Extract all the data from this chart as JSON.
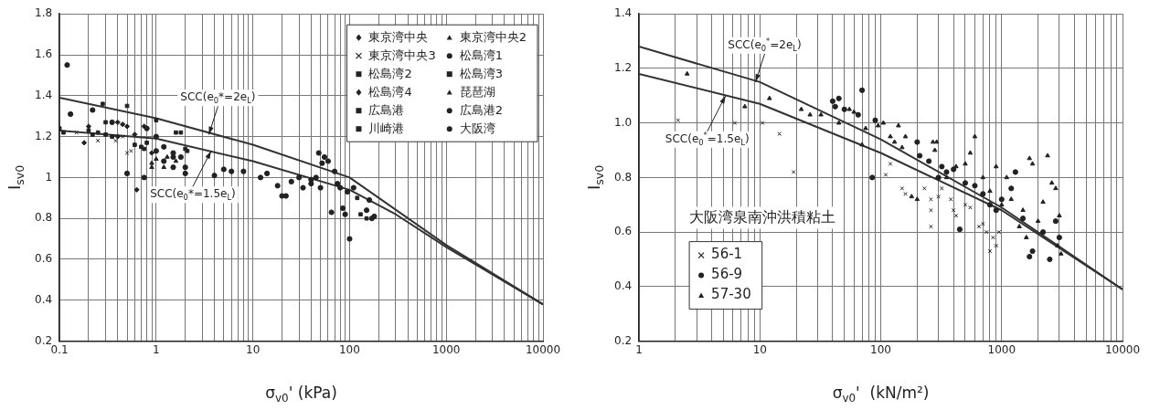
{
  "chart_data": [
    {
      "type": "scatter",
      "xlabel": "σ$_{v0}$' (kPa)",
      "ylabel": "I$_{sv0}$",
      "log": "x",
      "grid": true,
      "legend": "top right",
      "xlim": [
        0.1,
        10000
      ],
      "ylim": [
        0.2,
        1.8
      ],
      "xticks": [
        0.1,
        {
          "value": 0.2,
          "label": null
        },
        {
          "value": 0.3,
          "label": null
        },
        {
          "value": 0.4,
          "label": null
        },
        {
          "value": 0.5,
          "label": null
        },
        {
          "value": 0.6,
          "label": null
        },
        {
          "value": 0.7,
          "label": null
        },
        {
          "value": 0.8,
          "label": null
        },
        {
          "value": 0.9,
          "label": null
        },
        1,
        {
          "value": 2,
          "label": null
        },
        {
          "value": 3,
          "label": null
        },
        {
          "value": 4,
          "label": null
        },
        {
          "value": 5,
          "label": null
        },
        {
          "value": 6,
          "label": null
        },
        {
          "value": 7,
          "label": null
        },
        {
          "value": 8,
          "label": null
        },
        {
          "value": 9,
          "label": null
        },
        10,
        {
          "value": 20,
          "label": null
        },
        {
          "value": 30,
          "label": null
        },
        {
          "value": 40,
          "label": null
        },
        {
          "value": 50,
          "label": null
        },
        {
          "value": 60,
          "label": null
        },
        {
          "value": 70,
          "label": null
        },
        {
          "value": 80,
          "label": null
        },
        {
          "value": 90,
          "label": null
        },
        100,
        {
          "value": 200,
          "label": null
        },
        {
          "value": 300,
          "label": null
        },
        {
          "value": 400,
          "label": null
        },
        {
          "value": 500,
          "label": null
        },
        {
          "value": 600,
          "label": null
        },
        {
          "value": 700,
          "label": null
        },
        {
          "value": 800,
          "label": null
        },
        {
          "value": 900,
          "label": null
        },
        1000,
        {
          "value": 2000,
          "label": null
        },
        {
          "value": 3000,
          "label": null
        },
        {
          "value": 4000,
          "label": null
        },
        {
          "value": 5000,
          "label": null
        },
        {
          "value": 6000,
          "label": null
        },
        {
          "value": 7000,
          "label": null
        },
        {
          "value": 8000,
          "label": null
        },
        {
          "value": 9000,
          "label": null
        },
        10000
      ],
      "yticks": [
        0.2,
        0.4,
        0.6,
        0.8,
        1,
        1.2,
        1.4,
        1.6,
        1.8
      ],
      "series": [
        {
          "name": "東京湾中央",
          "marker": "diamond",
          "color": "#222222",
          "x": [
            0.4,
            0.5,
            0.75,
            0.63,
            0.45
          ],
          "values": [
            1.27,
            1.25,
            1.25,
            0.94,
            1.26
          ]
        },
        {
          "name": "東京湾中央2",
          "marker": "triangle",
          "color": "#222222",
          "x": [
            0.9,
            1.0,
            1.2
          ],
          "values": [
            1.07,
            1.09,
            1.05
          ]
        },
        {
          "name": "東京湾中央3",
          "marker": "cross",
          "color": "#222222",
          "x": [
            0.15,
            0.25,
            0.3,
            0.38,
            0.5,
            0.45,
            0.55
          ],
          "values": [
            1.22,
            1.18,
            null,
            1.18,
            1.12,
            1.2,
            1.13
          ]
        },
        {
          "name": "松島湾1",
          "marker": "circle",
          "color": "#222222",
          "x": [
            0.12,
            0.22,
            0.5,
            0.8,
            1.5,
            1.8,
            2.0,
            1.2
          ],
          "values": [
            1.55,
            1.33,
            1.02,
            1.24,
            1.05,
            1.1,
            1.02,
            1.08
          ]
        },
        {
          "name": "松島湾2",
          "marker": "square",
          "color": "#222222",
          "x": [
            0.11,
            0.2,
            0.25,
            0.3,
            0.6,
            0.7
          ],
          "values": [
            1.22,
            1.23,
            1.22,
            1.21,
            1.16,
            1.15
          ]
        },
        {
          "name": "松島湾3",
          "marker": "square",
          "color": "#222222",
          "x": [
            0.1,
            0.22,
            0.35,
            0.75,
            0.8
          ],
          "values": [
            1.24,
            1.21,
            1.2,
            1.14,
            1.17
          ]
        },
        {
          "name": "松島湾4",
          "marker": "diamond",
          "color": "#222222",
          "x": [
            0.18,
            0.2,
            0.4,
            0.6,
            0.9
          ],
          "values": [
            1.17,
            1.25,
            1.2,
            1.21,
            1.12
          ]
        },
        {
          "name": "琵琶湖",
          "marker": "triangle",
          "color": "#222222",
          "x": [
            0.9,
            1.3,
            1.6
          ],
          "values": [
            1.05,
            1.1,
            1.08
          ]
        },
        {
          "name": "広島港",
          "marker": "square",
          "color": "#222222",
          "x": [
            0.28,
            0.5,
            1.6,
            2.0,
            120,
            130
          ],
          "values": [
            1.36,
            1.35,
            1.22,
            1.14,
            0.9,
            0.82
          ]
        },
        {
          "name": "広島港2",
          "marker": "circle",
          "color": "#222222",
          "x": [
            0.13,
            0.35,
            1.0,
            1.5,
            5,
            40,
            150,
            170,
            180
          ],
          "values": [
            1.31,
            1.27,
            1.13,
            1.12,
            1.04,
            0.99,
            0.84,
            0.8,
            0.81
          ]
        },
        {
          "name": "川崎港",
          "marker": "square",
          "color": "#222222",
          "x": [
            0.3,
            1.0,
            1.8,
            2.1,
            150
          ],
          "values": [
            1.27,
            1.28,
            1.22,
            1.13,
            0.8
          ]
        },
        {
          "name": "大阪湾",
          "marker": "circle",
          "color": "#222222",
          "x": [
            0.75,
            1.0,
            1.2,
            1.5,
            2.0,
            4,
            5,
            6,
            8,
            12,
            14,
            18,
            20,
            22,
            25,
            30,
            33,
            40,
            45,
            48,
            52,
            55,
            60,
            50,
            65,
            70,
            75,
            80,
            85,
            90,
            100,
            110,
            95,
            160
          ],
          "values": [
            1.0,
            1.2,
            1.15,
            1.1,
            1.05,
            1.01,
            null,
            1.03,
            1.03,
            1.0,
            1.02,
            0.96,
            0.91,
            0.91,
            0.98,
            1.0,
            0.95,
            0.97,
            1.0,
            1.12,
            1.07,
            1.1,
            1.08,
            0.95,
            0.83,
            1.03,
            0.97,
            0.95,
            0.85,
            0.82,
            0.7,
            0.95,
            0.93,
            0.89
          ]
        },
        {
          "type": "line",
          "marker": "none",
          "color": "#333333",
          "x": [
            0.1,
            1,
            10,
            100,
            1000,
            10000
          ],
          "values": [
            1.39,
            1.29,
            1.16,
            1.0,
            0.67,
            0.38
          ]
        },
        {
          "type": "line",
          "marker": "none",
          "color": "#333333",
          "x": [
            0.1,
            1,
            10,
            100,
            300,
            1000,
            10000
          ],
          "values": [
            1.23,
            1.19,
            1.08,
            0.94,
            0.82,
            0.66,
            0.38
          ]
        }
      ],
      "annotations": [
        {
          "text": "SCC(e$_{0}$*=2e$_{L}$)",
          "x": 3.5,
          "y": 1.21
        },
        {
          "text": "SCC(e$_{0}$*=1.5e$_{L}$)",
          "x": 3.7,
          "y": 1.13
        }
      ]
    },
    {
      "type": "scatter",
      "xlabel": "σ$_{v0}$'  (kN/m²)",
      "ylabel": "I$_{sv0}$",
      "log": "x",
      "grid": true,
      "legend": "bottom left",
      "legend_title": "大阪湾泉南沖洪積粘土",
      "xlim": [
        1,
        10000
      ],
      "ylim": [
        0.2,
        1.4
      ],
      "xticks": [
        1,
        {
          "value": 2,
          "label": null
        },
        {
          "value": 3,
          "label": null
        },
        {
          "value": 4,
          "label": null
        },
        {
          "value": 5,
          "label": null
        },
        {
          "value": 6,
          "label": null
        },
        {
          "value": 7,
          "label": null
        },
        {
          "value": 8,
          "label": null
        },
        {
          "value": 9,
          "label": null
        },
        10,
        {
          "value": 20,
          "label": null
        },
        {
          "value": 30,
          "label": null
        },
        {
          "value": 40,
          "label": null
        },
        {
          "value": 50,
          "label": null
        },
        {
          "value": 60,
          "label": null
        },
        {
          "value": 70,
          "label": null
        },
        {
          "value": 80,
          "label": null
        },
        {
          "value": 90,
          "label": null
        },
        100,
        {
          "value": 200,
          "label": null
        },
        {
          "value": 300,
          "label": null
        },
        {
          "value": 400,
          "label": null
        },
        {
          "value": 500,
          "label": null
        },
        {
          "value": 600,
          "label": null
        },
        {
          "value": 700,
          "label": null
        },
        {
          "value": 800,
          "label": null
        },
        {
          "value": 900,
          "label": null
        },
        1000,
        {
          "value": 2000,
          "label": null
        },
        {
          "value": 3000,
          "label": null
        },
        {
          "value": 4000,
          "label": null
        },
        {
          "value": 5000,
          "label": null
        },
        {
          "value": 6000,
          "label": null
        },
        {
          "value": 7000,
          "label": null
        },
        {
          "value": 8000,
          "label": null
        },
        {
          "value": 9000,
          "label": null
        },
        10000
      ],
      "yticks": [
        0.2,
        0.4,
        0.6,
        0.8,
        {
          "value": 1,
          "label": "1.0"
        },
        1.2,
        1.4
      ],
      "series": [
        {
          "name": "56-1",
          "marker": "cross",
          "color": "#222222",
          "x": [
            2.1,
            6.2,
            10.5,
            14.5,
            19,
            110,
            120,
            150,
            160,
            230,
            260,
            260,
            260,
            300,
            320,
            380,
            400,
            420,
            500,
            550,
            650,
            700,
            750,
            800,
            850,
            900,
            950
          ],
          "values": [
            1.01,
            1.0,
            1.0,
            0.96,
            0.82,
            0.81,
            0.85,
            0.76,
            0.74,
            0.76,
            0.72,
            0.68,
            0.62,
            0.73,
            0.76,
            0.72,
            0.68,
            0.66,
            0.7,
            0.69,
            0.62,
            0.63,
            0.6,
            0.53,
            0.58,
            0.55,
            0.6
          ]
        },
        {
          "name": "56-9",
          "marker": "circle",
          "color": "#222222",
          "x": [
            40,
            42,
            45,
            50,
            70,
            65,
            90,
            85,
            200,
            210,
            250,
            300,
            320,
            350,
            400,
            450,
            500,
            600,
            700,
            800,
            900,
            1000,
            1200,
            1300,
            1500,
            1700,
            1800,
            2500,
            2200,
            3000,
            2800
          ],
          "values": [
            1.08,
            1.06,
            1.09,
            1.05,
            1.12,
            1.03,
            1.01,
            0.8,
            0.93,
            0.88,
            0.86,
            0.8,
            0.84,
            0.82,
            0.83,
            0.61,
            0.78,
            0.77,
            0.74,
            0.7,
            0.68,
            0.72,
            0.76,
            0.82,
            0.65,
            0.51,
            0.53,
            0.5,
            0.6,
            0.58,
            0.64
          ]
        },
        {
          "name": "57-30",
          "marker": "triangle",
          "color": "#222222",
          "x": [
            2.5,
            7.5,
            12,
            22,
            26,
            32,
            45,
            55,
            60,
            75,
            70,
            95,
            105,
            120,
            130,
            140,
            150,
            160,
            180,
            200,
            270,
            290,
            280,
            350,
            420,
            500,
            600,
            550,
            700,
            800,
            900,
            1000,
            1100,
            1200,
            1400,
            1500,
            1700,
            1800,
            2000,
            2200,
            2400,
            2600,
            2800,
            3000,
            3100,
            2900,
            1600
          ],
          "values": [
            1.18,
            1.06,
            1.09,
            1.05,
            1.03,
            1.03,
            1.0,
            1.05,
            1.04,
            0.98,
            0.92,
            0.99,
            1.0,
            0.95,
            0.93,
            0.99,
            0.91,
            0.95,
            0.73,
            0.72,
            0.93,
            0.93,
            0.9,
            0.8,
            0.84,
            0.85,
            0.95,
            0.89,
            0.8,
            0.75,
            0.84,
            0.7,
            0.8,
            0.72,
            0.62,
            0.68,
            0.87,
            0.85,
            0.64,
            0.71,
            0.88,
            0.78,
            0.76,
            0.66,
            0.52,
            0.55,
            0.58
          ]
        },
        {
          "type": "line",
          "marker": "none",
          "color": "#333333",
          "x": [
            1,
            10,
            100,
            1000,
            10000
          ],
          "values": [
            1.28,
            1.15,
            0.94,
            0.69,
            0.39
          ]
        },
        {
          "type": "line",
          "marker": "none",
          "color": "#333333",
          "x": [
            1,
            10,
            100,
            300,
            1000,
            10000
          ],
          "values": [
            1.18,
            1.07,
            0.89,
            0.79,
            0.68,
            0.39
          ]
        }
      ],
      "annotations": [
        {
          "text": "SCC(e$_{0}$$^{*}$=2e$_{L}$)",
          "x": 9.2,
          "y": 1.15
        },
        {
          "text": "SCC(e$_{0}$$^{*}$=1.5e$_{L}$)",
          "x": 5.2,
          "y": 1.1
        }
      ]
    }
  ]
}
